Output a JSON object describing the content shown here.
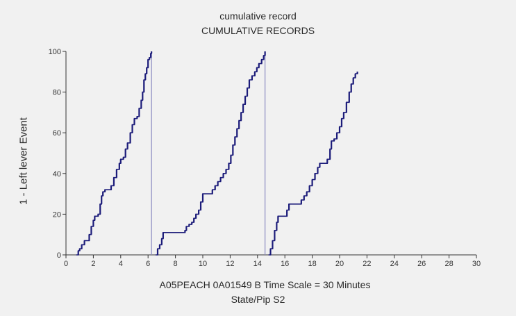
{
  "chart_data": {
    "type": "line",
    "title": "cumulative record",
    "subtitle": "CUMULATIVE RECORDS",
    "ylabel": "1 - Left lever  Event",
    "xlabel": "A05PEACH 0A01549 B    Time Scale = 30 Minutes",
    "xlabel2": "State/Pip S2",
    "xlim": [
      0,
      30
    ],
    "ylim": [
      0,
      100
    ],
    "xticks": [
      0,
      2,
      4,
      6,
      8,
      10,
      12,
      14,
      16,
      18,
      20,
      22,
      24,
      26,
      28,
      30
    ],
    "yticks": [
      0,
      20,
      40,
      60,
      80,
      100
    ],
    "colors": {
      "line": "#1c1c7a",
      "reset": "#8a8ac0",
      "axis": "#333333"
    },
    "series": [
      {
        "points": [
          [
            0.75,
            0
          ],
          [
            0.9,
            2
          ],
          [
            1.0,
            3
          ],
          [
            1.15,
            5
          ],
          [
            1.35,
            7
          ],
          [
            1.55,
            7
          ],
          [
            1.7,
            10
          ],
          [
            1.85,
            14
          ],
          [
            2.0,
            17
          ],
          [
            2.1,
            19
          ],
          [
            2.35,
            20
          ],
          [
            2.5,
            25
          ],
          [
            2.6,
            29
          ],
          [
            2.7,
            31
          ],
          [
            2.85,
            32
          ],
          [
            3.1,
            32
          ],
          [
            3.3,
            34
          ],
          [
            3.5,
            38
          ],
          [
            3.7,
            42
          ],
          [
            3.9,
            45
          ],
          [
            4.0,
            47
          ],
          [
            4.2,
            48
          ],
          [
            4.35,
            52
          ],
          [
            4.5,
            55
          ],
          [
            4.7,
            60
          ],
          [
            4.85,
            64
          ],
          [
            5.0,
            67
          ],
          [
            5.2,
            68
          ],
          [
            5.35,
            72
          ],
          [
            5.5,
            76
          ],
          [
            5.6,
            80
          ],
          [
            5.7,
            86
          ],
          [
            5.8,
            89
          ],
          [
            5.9,
            92
          ],
          [
            6.0,
            96
          ],
          [
            6.1,
            97
          ],
          [
            6.2,
            99
          ],
          [
            6.25,
            100
          ]
        ]
      },
      {
        "points": [
          [
            6.55,
            0
          ],
          [
            6.7,
            3
          ],
          [
            6.85,
            5
          ],
          [
            7.0,
            8
          ],
          [
            7.1,
            11
          ],
          [
            7.5,
            11
          ],
          [
            8.0,
            11
          ],
          [
            8.6,
            11
          ],
          [
            8.7,
            12
          ],
          [
            8.8,
            14
          ],
          [
            9.0,
            15
          ],
          [
            9.2,
            16
          ],
          [
            9.35,
            18
          ],
          [
            9.5,
            20
          ],
          [
            9.7,
            22
          ],
          [
            9.85,
            26
          ],
          [
            10.0,
            30
          ],
          [
            10.3,
            30
          ],
          [
            10.5,
            30
          ],
          [
            10.7,
            32
          ],
          [
            10.9,
            34
          ],
          [
            11.1,
            36
          ],
          [
            11.3,
            38
          ],
          [
            11.5,
            40
          ],
          [
            11.7,
            42
          ],
          [
            11.9,
            45
          ],
          [
            12.05,
            49
          ],
          [
            12.2,
            54
          ],
          [
            12.35,
            58
          ],
          [
            12.5,
            62
          ],
          [
            12.65,
            66
          ],
          [
            12.8,
            70
          ],
          [
            12.95,
            74
          ],
          [
            13.1,
            78
          ],
          [
            13.25,
            82
          ],
          [
            13.4,
            86
          ],
          [
            13.6,
            88
          ],
          [
            13.8,
            90
          ],
          [
            13.95,
            92
          ],
          [
            14.1,
            94
          ],
          [
            14.3,
            96
          ],
          [
            14.45,
            98
          ],
          [
            14.55,
            100
          ]
        ]
      },
      {
        "points": [
          [
            14.8,
            0
          ],
          [
            14.95,
            3
          ],
          [
            15.1,
            7
          ],
          [
            15.25,
            12
          ],
          [
            15.4,
            16
          ],
          [
            15.5,
            19
          ],
          [
            15.8,
            19
          ],
          [
            16.0,
            19
          ],
          [
            16.15,
            22
          ],
          [
            16.3,
            25
          ],
          [
            16.7,
            25
          ],
          [
            17.0,
            25
          ],
          [
            17.2,
            27
          ],
          [
            17.4,
            29
          ],
          [
            17.6,
            31
          ],
          [
            17.8,
            34
          ],
          [
            18.0,
            37
          ],
          [
            18.2,
            40
          ],
          [
            18.4,
            43
          ],
          [
            18.55,
            45
          ],
          [
            18.9,
            45
          ],
          [
            19.1,
            47
          ],
          [
            19.3,
            52
          ],
          [
            19.4,
            56
          ],
          [
            19.6,
            57
          ],
          [
            19.8,
            60
          ],
          [
            20.0,
            63
          ],
          [
            20.15,
            67
          ],
          [
            20.3,
            70
          ],
          [
            20.5,
            75
          ],
          [
            20.7,
            80
          ],
          [
            20.85,
            84
          ],
          [
            21.0,
            87
          ],
          [
            21.15,
            89
          ],
          [
            21.3,
            90
          ]
        ]
      }
    ],
    "resets": [
      {
        "x": 6.25,
        "from": 100,
        "to": 0
      },
      {
        "x": 14.55,
        "from": 100,
        "to": 0
      }
    ]
  }
}
